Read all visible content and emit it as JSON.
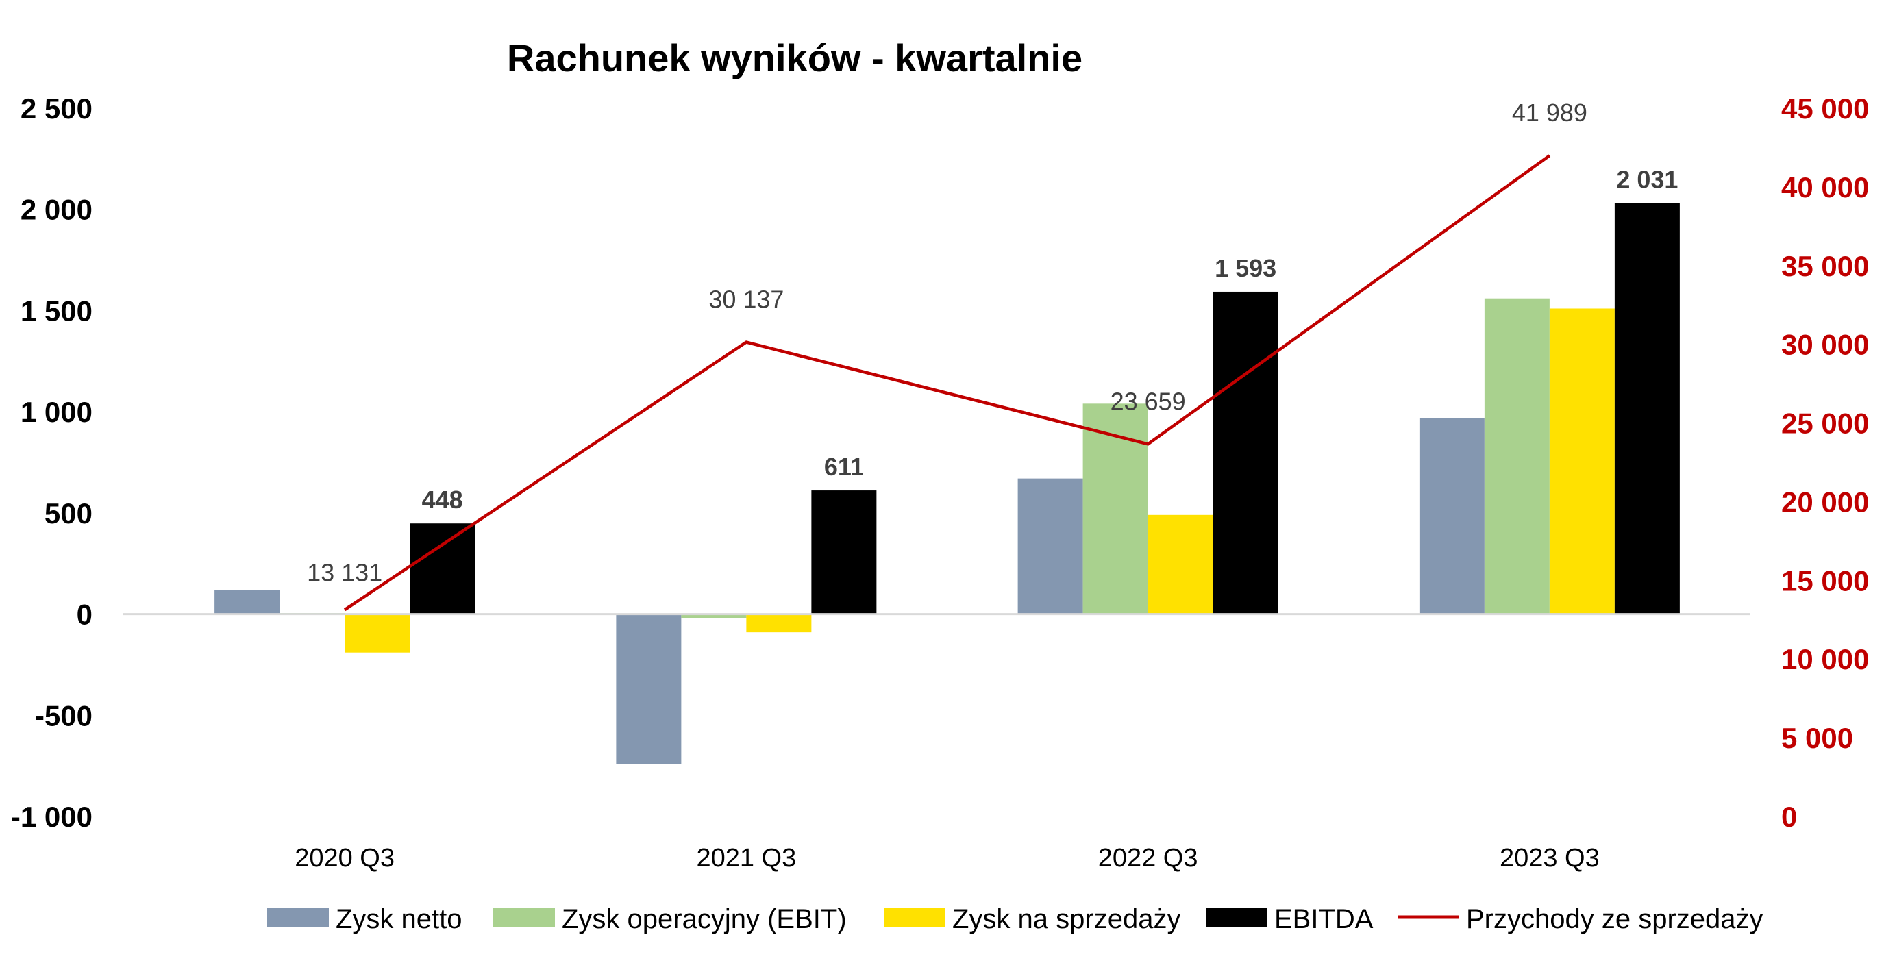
{
  "chart_data": {
    "type": "bar",
    "title": "Rachunek wyników - kwartalnie",
    "categories": [
      "2020 Q3",
      "2021 Q3",
      "2022 Q3",
      "2023 Q3"
    ],
    "y_left": {
      "ylim": [
        -1000,
        2500
      ],
      "ticks": [
        -1000,
        -500,
        0,
        500,
        1000,
        1500,
        2000,
        2500
      ],
      "tick_labels": [
        "-1 000",
        "-500",
        "0",
        "500",
        "1 000",
        "1 500",
        "2 000",
        "2 500"
      ]
    },
    "y_right": {
      "ylim": [
        0,
        45000
      ],
      "ticks": [
        0,
        5000,
        10000,
        15000,
        20000,
        25000,
        30000,
        35000,
        40000,
        45000
      ],
      "tick_labels": [
        "0",
        "5 000",
        "10 000",
        "15 000",
        "20 000",
        "25 000",
        "30 000",
        "35 000",
        "40 000",
        "45 000"
      ],
      "color": "#c00000"
    },
    "series": [
      {
        "name": "Zysk netto",
        "type": "bar",
        "axis": "left",
        "color": "#8497b0",
        "values": [
          120,
          -740,
          670,
          970
        ]
      },
      {
        "name": "Zysk operacyjny (EBIT)",
        "type": "bar",
        "axis": "left",
        "color": "#a9d18e",
        "values": [
          5,
          -20,
          1040,
          1560
        ]
      },
      {
        "name": "Zysk na sprzedaży",
        "type": "bar",
        "axis": "left",
        "color": "#ffe100",
        "values": [
          -190,
          -90,
          490,
          1510
        ]
      },
      {
        "name": "EBITDA",
        "type": "bar",
        "axis": "left",
        "color": "#000000",
        "values": [
          448,
          611,
          1593,
          2031
        ],
        "data_labels": [
          "448",
          "611",
          "1 593",
          "2 031"
        ]
      },
      {
        "name": "Przychody ze sprzedaży",
        "type": "line",
        "axis": "right",
        "color": "#c00000",
        "values": [
          13131,
          30137,
          23659,
          41989
        ],
        "data_labels": [
          "13 131",
          "30 137",
          "23 659",
          "41 989"
        ]
      }
    ],
    "legend_position": "bottom",
    "grid": false
  }
}
